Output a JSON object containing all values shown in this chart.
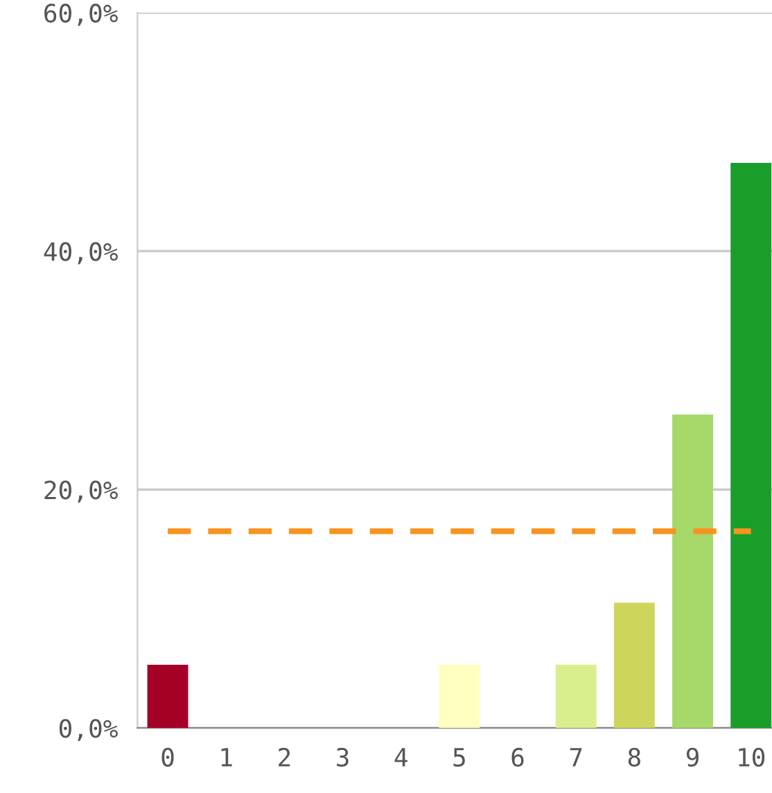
{
  "chart_data": {
    "type": "bar",
    "categories": [
      "0",
      "1",
      "2",
      "3",
      "4",
      "5",
      "6",
      "7",
      "8",
      "9",
      "10"
    ],
    "values": [
      5.3,
      0,
      0,
      0,
      0,
      5.3,
      0,
      5.3,
      10.5,
      26.3,
      47.4
    ],
    "colors": [
      "#a50026",
      "#d73027",
      "#f46d43",
      "#fdae61",
      "#fee08b",
      "#ffffbf",
      "#e6f598",
      "#d9ef8b",
      "#cdd65a",
      "#a6d96a",
      "#1a9e2a"
    ],
    "ylim": [
      0,
      60
    ],
    "yticks": [
      {
        "value": 0,
        "label": "0,0%"
      },
      {
        "value": 20,
        "label": "20,0%"
      },
      {
        "value": 40,
        "label": "40,0%"
      },
      {
        "value": 60,
        "label": "60,0%"
      }
    ],
    "grid": "y",
    "ref_lines": [
      {
        "axis": "y",
        "value": 16.5,
        "color": "#f7931e",
        "line_style": "dashed"
      }
    ]
  }
}
